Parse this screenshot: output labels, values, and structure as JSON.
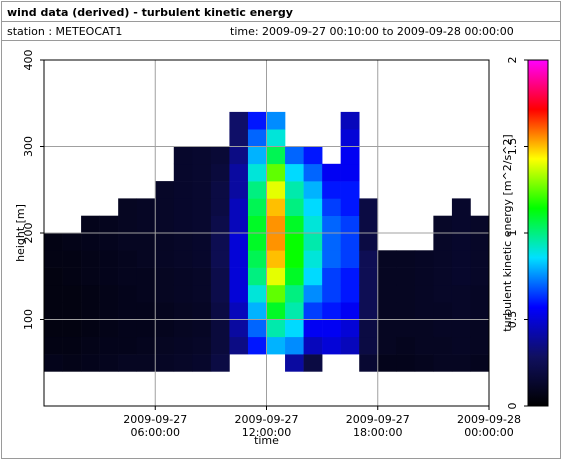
{
  "chart_data": {
    "type": "heatmap",
    "title": "wind data (derived) - turbulent kinetic energy",
    "station": "station : METEOCAT1",
    "period": "time: 2009-09-27 00:10:00 to 2009-09-28 00:00:00",
    "x_label": "time",
    "y_label": "height [m]",
    "colorbar_label": "turbulent kinetic energy [m^2/s^2]",
    "xlim": [
      0,
      24
    ],
    "xticks": [
      {
        "value": 6,
        "label": "2009-09-27 06:00:00"
      },
      {
        "value": 12,
        "label": "2009-09-27 12:00:00"
      },
      {
        "value": 18,
        "label": "2009-09-27 18:00:00"
      },
      {
        "value": 24,
        "label": "2009-09-28 00:00:00"
      }
    ],
    "ylim": [
      0,
      400
    ],
    "yticks": [
      100,
      200,
      300,
      400
    ],
    "clim": [
      0,
      2
    ],
    "cticks": [
      0,
      0.5,
      1,
      1.5,
      2
    ],
    "colorscale": [
      "#000000",
      "#101060",
      "#0000ff",
      "#00e0ff",
      "#00ff00",
      "#ffff00",
      "#ff0000",
      "#ff00ff"
    ],
    "grid": true,
    "x_bins": [
      0,
      1,
      2,
      3,
      4,
      5,
      6,
      7,
      8,
      9,
      10,
      11,
      12,
      13,
      14,
      15,
      16,
      17,
      18,
      19,
      20,
      21,
      22,
      23,
      24
    ],
    "y_bins": [
      40,
      60,
      80,
      100,
      120,
      140,
      160,
      180,
      200,
      220,
      240,
      260,
      280,
      300,
      320,
      340
    ],
    "z": [
      [
        0.08,
        0.06,
        0.05,
        0.05,
        0.05,
        0.05,
        0.06,
        0.06,
        null,
        null,
        null,
        null,
        null,
        null,
        null
      ],
      [
        0.07,
        0.06,
        0.05,
        0.05,
        0.05,
        0.06,
        0.06,
        0.07,
        null,
        null,
        null,
        null,
        null,
        null,
        null
      ],
      [
        0.08,
        0.07,
        0.06,
        0.06,
        0.06,
        0.07,
        0.07,
        0.08,
        0.08,
        null,
        null,
        null,
        null,
        null,
        null
      ],
      [
        0.09,
        0.08,
        0.07,
        0.07,
        0.07,
        0.08,
        0.08,
        0.09,
        0.09,
        null,
        null,
        null,
        null,
        null,
        null
      ],
      [
        0.1,
        0.08,
        0.08,
        0.08,
        0.08,
        0.09,
        0.09,
        0.1,
        0.1,
        0.1,
        null,
        null,
        null,
        null,
        null
      ],
      [
        0.1,
        0.09,
        0.08,
        0.08,
        0.09,
        0.09,
        0.1,
        0.1,
        0.11,
        0.11,
        null,
        null,
        null,
        null,
        null
      ],
      [
        0.11,
        0.1,
        0.09,
        0.09,
        0.1,
        0.1,
        0.11,
        0.11,
        0.12,
        0.12,
        0.12,
        null,
        null,
        null,
        null
      ],
      [
        0.12,
        0.11,
        0.1,
        0.1,
        0.11,
        0.11,
        0.12,
        0.12,
        0.13,
        0.13,
        0.13,
        0.13,
        0.13,
        null,
        null
      ],
      [
        0.13,
        0.12,
        0.11,
        0.11,
        0.12,
        0.12,
        0.13,
        0.13,
        0.14,
        0.14,
        0.14,
        0.14,
        0.14,
        null,
        null
      ],
      [
        0.2,
        0.18,
        0.18,
        0.2,
        0.22,
        0.22,
        0.24,
        0.24,
        0.22,
        0.2,
        0.2,
        0.18,
        0.16,
        null,
        null
      ],
      [
        null,
        0.35,
        0.4,
        0.45,
        0.5,
        0.5,
        0.5,
        0.5,
        0.45,
        0.45,
        0.4,
        0.4,
        0.35,
        0.3,
        0.3
      ],
      [
        null,
        0.6,
        0.7,
        0.8,
        0.9,
        1.0,
        1.05,
        1.1,
        1.1,
        1.05,
        1.0,
        0.9,
        0.8,
        0.7,
        0.6
      ],
      [
        null,
        0.8,
        0.95,
        1.1,
        1.25,
        1.4,
        1.5,
        1.55,
        1.55,
        1.5,
        1.4,
        1.25,
        1.05,
        0.9,
        0.75
      ],
      [
        0.4,
        0.75,
        0.85,
        0.95,
        1.0,
        1.1,
        1.15,
        1.15,
        1.1,
        1.0,
        0.95,
        0.85,
        0.7,
        null,
        null
      ],
      [
        0.2,
        0.45,
        0.55,
        0.65,
        0.75,
        0.85,
        0.9,
        0.95,
        0.9,
        0.85,
        0.8,
        0.7,
        0.6,
        null,
        null
      ],
      [
        null,
        0.5,
        0.55,
        0.6,
        0.65,
        0.65,
        0.7,
        0.7,
        0.7,
        0.65,
        0.6,
        0.55,
        null,
        null,
        null
      ],
      [
        null,
        0.45,
        0.5,
        0.55,
        0.6,
        0.6,
        0.65,
        0.65,
        0.65,
        0.6,
        0.6,
        0.55,
        0.55,
        0.5,
        0.45
      ],
      [
        0.15,
        0.2,
        0.2,
        0.25,
        0.25,
        0.25,
        0.25,
        0.2,
        0.2,
        0.2,
        null,
        null,
        null,
        null,
        null
      ],
      [
        0.08,
        0.1,
        0.1,
        0.1,
        0.1,
        0.1,
        0.1,
        null,
        null,
        null,
        null,
        null,
        null,
        null,
        null
      ],
      [
        0.08,
        0.09,
        0.1,
        0.1,
        0.1,
        0.1,
        0.1,
        null,
        null,
        null,
        null,
        null,
        null,
        null,
        null
      ],
      [
        0.09,
        0.1,
        0.1,
        0.11,
        0.11,
        0.11,
        0.11,
        null,
        null,
        null,
        null,
        null,
        null,
        null,
        null
      ],
      [
        0.1,
        0.1,
        0.11,
        0.11,
        0.12,
        0.12,
        0.12,
        0.12,
        0.12,
        null,
        null,
        null,
        null,
        null,
        null
      ],
      [
        0.1,
        0.11,
        0.11,
        0.12,
        0.12,
        0.13,
        0.13,
        0.13,
        0.13,
        0.13,
        null,
        null,
        null,
        null,
        null
      ],
      [
        0.09,
        0.1,
        0.1,
        0.11,
        0.11,
        0.12,
        0.12,
        0.12,
        0.12,
        null,
        null,
        null,
        null,
        null,
        null
      ]
    ]
  }
}
